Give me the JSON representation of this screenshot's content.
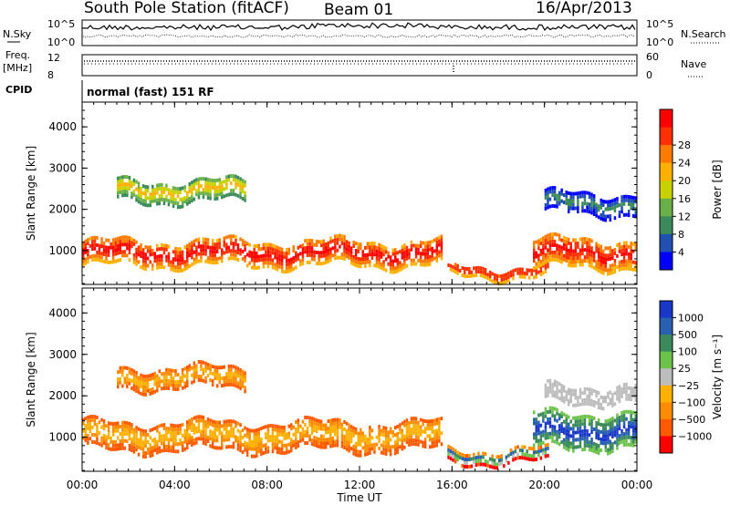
{
  "header": {
    "station": "South Pole Station (fitACF)",
    "beam": "Beam 01",
    "date": "16/Apr/2013"
  },
  "aux_panels": {
    "left_labels": [
      "N.Sky",
      "Freq.",
      "[MHz]",
      "CPID"
    ],
    "right_labels": [
      "N.Search",
      "Nave"
    ],
    "noise_ticks_left": [
      "10^5",
      "10^0"
    ],
    "noise_ticks_right": [
      "10^5",
      "10^0"
    ],
    "freq_ticks": [
      "12",
      "8"
    ],
    "nave_ticks": [
      "60",
      "0"
    ],
    "cpid_text": "normal (fast) 151 RF"
  },
  "colors": {
    "power_scale": [
      "#0000ff",
      "#2050b0",
      "#3a8a5a",
      "#6ab04a",
      "#c8d200",
      "#ffb000",
      "#ff7a00",
      "#ff3000",
      "#ff0000"
    ],
    "velocity_scale": [
      "#ff0000",
      "#ff5a00",
      "#ff8c00",
      "#ffb000",
      "#bdbdbd",
      "#6cc24a",
      "#3a8a5a",
      "#2a60b0",
      "#1a38c8"
    ]
  },
  "chart_data": [
    {
      "type": "heatmap",
      "panel": "power",
      "xlabel": "",
      "ylabel": "Slant Range [km]",
      "x_ticks": [
        "00:00",
        "04:00",
        "08:00",
        "12:00",
        "16:00",
        "20:00",
        "00:00"
      ],
      "y_ticks": [
        1000,
        2000,
        3000,
        4000
      ],
      "ylim": [
        180,
        4600
      ],
      "xlim_hours": [
        0,
        24
      ],
      "colorbar_label": "Power [dB]",
      "colorbar_ticks": [
        4,
        8,
        12,
        16,
        20,
        24,
        28
      ],
      "bands": [
        {
          "t0": 0.0,
          "t1": 15.5,
          "r_center": 1000,
          "r_width": 600,
          "level": "high"
        },
        {
          "t0": 15.8,
          "t1": 20.2,
          "r_center": 550,
          "r_width": 250,
          "level": "high"
        },
        {
          "t0": 19.5,
          "t1": 24.0,
          "r_center": 1000,
          "r_width": 700,
          "level": "high"
        },
        {
          "t0": 1.5,
          "t1": 7.0,
          "r_center": 2500,
          "r_width": 500,
          "level": "mid"
        },
        {
          "t0": 20.0,
          "t1": 24.0,
          "r_center": 2200,
          "r_width": 500,
          "level": "low"
        }
      ]
    },
    {
      "type": "heatmap",
      "panel": "velocity",
      "xlabel": "Time UT",
      "ylabel": "Slant Range [km]",
      "x_ticks": [
        "00:00",
        "04:00",
        "08:00",
        "12:00",
        "16:00",
        "20:00",
        "00:00"
      ],
      "y_ticks": [
        1000,
        2000,
        3000,
        4000
      ],
      "ylim": [
        180,
        4600
      ],
      "xlim_hours": [
        0,
        24
      ],
      "colorbar_label": "Velocity [m s⁻¹]",
      "colorbar_ticks": [
        -1000,
        -500,
        -100,
        -25,
        25,
        100,
        500,
        1000
      ],
      "colorbar_tick_labels": [
        "−1000",
        "−500",
        "−100",
        "−25",
        "25",
        "100",
        "500",
        "1000"
      ],
      "bands": [
        {
          "t0": 0.0,
          "t1": 15.5,
          "r_center": 1100,
          "r_width": 700,
          "level": "negative"
        },
        {
          "t0": 15.8,
          "t1": 20.2,
          "r_center": 600,
          "r_width": 300,
          "level": "mixed"
        },
        {
          "t0": 19.5,
          "t1": 24.0,
          "r_center": 1200,
          "r_width": 800,
          "level": "positive"
        },
        {
          "t0": 1.5,
          "t1": 7.0,
          "r_center": 2500,
          "r_width": 500,
          "level": "negative"
        },
        {
          "t0": 20.0,
          "t1": 24.0,
          "r_center": 2100,
          "r_width": 400,
          "level": "zero"
        }
      ]
    }
  ]
}
